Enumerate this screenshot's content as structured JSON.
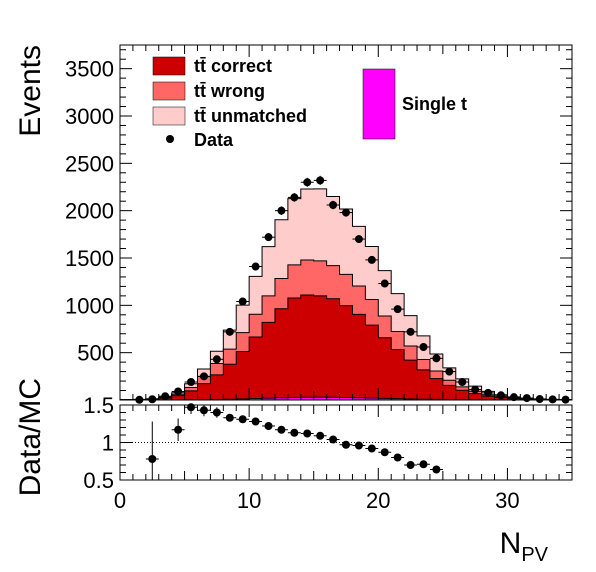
{
  "chart_data": [
    {
      "type": "bar",
      "stacked": true,
      "histogram": true,
      "xlabel": "N",
      "xlabel_sub": "PV",
      "ylabel": "Events",
      "xlim": [
        0,
        35
      ],
      "ylim": [
        0,
        3750
      ],
      "yticks": [
        500,
        1000,
        1500,
        2000,
        2500,
        3000,
        3500
      ],
      "xticks": [
        0,
        10,
        20,
        30
      ],
      "bin_edges": [
        0,
        1,
        2,
        3,
        4,
        5,
        6,
        7,
        8,
        9,
        10,
        11,
        12,
        13,
        14,
        15,
        16,
        17,
        18,
        19,
        20,
        21,
        22,
        23,
        24,
        25,
        26,
        27,
        28,
        29,
        30,
        31,
        32,
        33,
        34,
        35
      ],
      "series": [
        {
          "name": "Single t",
          "color": "#ff00ff",
          "values": [
            0,
            0,
            0,
            0,
            1,
            2,
            3,
            5,
            8,
            12,
            16,
            20,
            24,
            27,
            29,
            30,
            29,
            27,
            24,
            21,
            17,
            14,
            11,
            8,
            6,
            4,
            3,
            2,
            1,
            1,
            1,
            0,
            0,
            0,
            0
          ]
        },
        {
          "name": "tt̄ correct",
          "color": "#cc0000",
          "values": [
            2,
            4,
            8,
            20,
            45,
            95,
            170,
            260,
            370,
            500,
            650,
            800,
            940,
            1050,
            1080,
            1070,
            1040,
            970,
            880,
            770,
            640,
            520,
            410,
            310,
            220,
            150,
            100,
            65,
            40,
            25,
            15,
            10,
            6,
            4,
            2
          ]
        },
        {
          "name": "tt̄ wrong",
          "color": "#ff6666",
          "values": [
            1,
            1,
            2,
            5,
            15,
            35,
            75,
            120,
            160,
            200,
            240,
            280,
            320,
            350,
            370,
            370,
            350,
            330,
            300,
            270,
            230,
            190,
            150,
            110,
            80,
            55,
            35,
            25,
            15,
            10,
            5,
            3,
            2,
            1,
            1
          ]
        },
        {
          "name": "tt̄ unmatched",
          "color": "#ffcccc",
          "values": [
            1,
            2,
            3,
            6,
            15,
            40,
            80,
            130,
            200,
            290,
            400,
            520,
            620,
            700,
            750,
            760,
            730,
            690,
            630,
            560,
            480,
            400,
            320,
            250,
            180,
            130,
            85,
            55,
            35,
            20,
            12,
            7,
            4,
            2,
            1
          ]
        }
      ],
      "data_points": {
        "name": "Data",
        "x": [
          1.5,
          2.5,
          3.5,
          4.5,
          5.5,
          6.5,
          7.5,
          8.5,
          9.5,
          10.5,
          11.5,
          12.5,
          13.5,
          14.5,
          15.5,
          16.5,
          17.5,
          18.5,
          19.5,
          20.5,
          21.5,
          22.5,
          23.5,
          24.5,
          25.5,
          26.5,
          27.5,
          28.5,
          29.5,
          30.5,
          31.5,
          32.5,
          33.5,
          34.5
        ],
        "y": [
          2,
          8,
          40,
          90,
          190,
          250,
          430,
          720,
          1040,
          1410,
          1720,
          2000,
          2140,
          2300,
          2320,
          2060,
          1980,
          1700,
          1480,
          1230,
          960,
          720,
          560,
          440,
          300,
          190,
          110,
          75,
          50,
          30,
          20,
          10,
          6,
          4
        ],
        "yerr": [
          2,
          4,
          7,
          10,
          14,
          16,
          21,
          27,
          32,
          38,
          41,
          45,
          46,
          48,
          48,
          45,
          44,
          41,
          38,
          35,
          31,
          27,
          24,
          21,
          17,
          14,
          11,
          9,
          7,
          6,
          5,
          3,
          3,
          2
        ]
      },
      "legend": [
        "tt̄ correct",
        "tt̄ wrong",
        "tt̄ unmatched",
        "Data",
        "Single t"
      ]
    },
    {
      "type": "scatter",
      "xlabel": "N",
      "xlabel_sub": "PV",
      "ylabel": "Data/MC",
      "xlim": [
        0,
        35
      ],
      "ylim": [
        0.5,
        1.5
      ],
      "yticks": [
        "0.5",
        "1",
        "1.5"
      ],
      "xticks": [
        "0",
        "10",
        "20",
        "30"
      ],
      "reference_line": 1,
      "x": [
        2.5,
        4.5,
        5.5,
        6.5,
        7.5,
        8.5,
        9.5,
        10.5,
        11.5,
        12.5,
        13.5,
        14.5,
        15.5,
        16.5,
        17.5,
        18.5,
        19.5,
        20.5,
        21.5,
        22.5,
        23.5,
        24.5
      ],
      "y": [
        0.78,
        1.17,
        1.47,
        1.43,
        1.4,
        1.33,
        1.31,
        1.28,
        1.22,
        1.17,
        1.13,
        1.12,
        1.09,
        1.04,
        0.97,
        0.96,
        0.92,
        0.87,
        0.8,
        0.7,
        0.71,
        0.64
      ],
      "yerr": [
        0.5,
        0.15,
        0.09,
        0.08,
        0.07,
        0.04,
        0.03,
        0.03,
        0.02,
        0.02,
        0.02,
        0.02,
        0.02,
        0.02,
        0.02,
        0.02,
        0.02,
        0.02,
        0.02,
        0.03,
        0.03,
        0.04
      ]
    }
  ]
}
